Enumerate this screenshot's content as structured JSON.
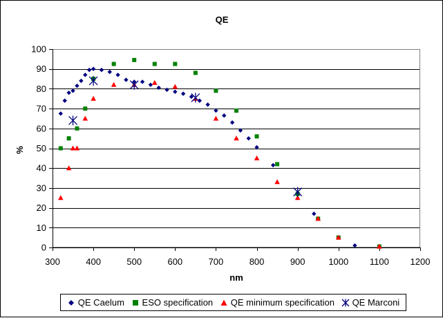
{
  "chart_data": {
    "type": "scatter",
    "title": "QE",
    "xlabel": "nm",
    "ylabel": "%",
    "xlim": [
      300,
      1200
    ],
    "ylim": [
      0,
      100
    ],
    "x_ticks": [
      300,
      400,
      500,
      600,
      700,
      800,
      900,
      1000,
      1100,
      1200
    ],
    "y_ticks": [
      0,
      10,
      20,
      30,
      40,
      50,
      60,
      70,
      80,
      90,
      100
    ],
    "grid": "horizontal",
    "legend_position": "bottom",
    "series": [
      {
        "name": "QE Caelum",
        "marker": "diamond",
        "color": "#000080",
        "points": [
          [
            320,
            67.5
          ],
          [
            330,
            74
          ],
          [
            340,
            78
          ],
          [
            350,
            79
          ],
          [
            360,
            81.5
          ],
          [
            370,
            84
          ],
          [
            380,
            87
          ],
          [
            390,
            89.5
          ],
          [
            400,
            90
          ],
          [
            420,
            89.5
          ],
          [
            440,
            88.5
          ],
          [
            460,
            87
          ],
          [
            480,
            84.5
          ],
          [
            500,
            83.5
          ],
          [
            520,
            83.5
          ],
          [
            540,
            82
          ],
          [
            560,
            80.5
          ],
          [
            580,
            79.5
          ],
          [
            600,
            78.5
          ],
          [
            620,
            77.5
          ],
          [
            640,
            76
          ],
          [
            660,
            74
          ],
          [
            680,
            72
          ],
          [
            700,
            69
          ],
          [
            720,
            66.5
          ],
          [
            740,
            63
          ],
          [
            760,
            59
          ],
          [
            780,
            55
          ],
          [
            800,
            50.5
          ],
          [
            840,
            41.5
          ],
          [
            900,
            27.5
          ],
          [
            940,
            17
          ],
          [
            1000,
            5
          ],
          [
            1040,
            1
          ]
        ]
      },
      {
        "name": "ESO specification",
        "marker": "square",
        "color": "#008000",
        "points": [
          [
            320,
            50
          ],
          [
            340,
            55
          ],
          [
            360,
            60
          ],
          [
            380,
            70
          ],
          [
            400,
            85
          ],
          [
            450,
            92.5
          ],
          [
            500,
            94.5
          ],
          [
            550,
            92.5
          ],
          [
            600,
            92.5
          ],
          [
            650,
            88
          ],
          [
            700,
            79
          ],
          [
            750,
            69
          ],
          [
            800,
            56
          ],
          [
            850,
            42
          ],
          [
            900,
            27
          ],
          [
            950,
            14.5
          ],
          [
            1000,
            5
          ],
          [
            1100,
            0.5
          ]
        ]
      },
      {
        "name": "QE minimum specification",
        "marker": "triangle",
        "color": "#ff0000",
        "points": [
          [
            320,
            25
          ],
          [
            340,
            40
          ],
          [
            350,
            50
          ],
          [
            360,
            50
          ],
          [
            380,
            65
          ],
          [
            400,
            75
          ],
          [
            450,
            82
          ],
          [
            500,
            82
          ],
          [
            550,
            83
          ],
          [
            600,
            81
          ],
          [
            650,
            75
          ],
          [
            700,
            65
          ],
          [
            750,
            55
          ],
          [
            800,
            45
          ],
          [
            850,
            33
          ],
          [
            900,
            25
          ],
          [
            950,
            14.5
          ],
          [
            1000,
            5
          ],
          [
            1100,
            0.5
          ]
        ]
      },
      {
        "name": "QE Marconi",
        "marker": "star",
        "color": "#000080",
        "points": [
          [
            350,
            64
          ],
          [
            400,
            84
          ],
          [
            500,
            82
          ],
          [
            650,
            75.5
          ],
          [
            900,
            28
          ]
        ]
      }
    ]
  }
}
